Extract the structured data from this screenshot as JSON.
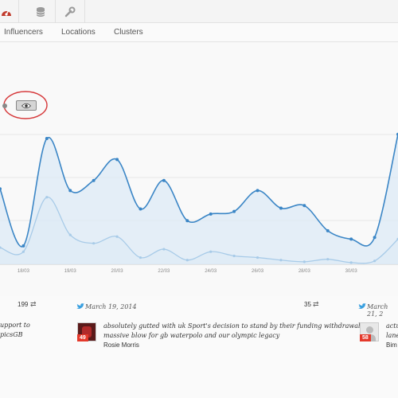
{
  "toolbar": {
    "icons": [
      "dashboard-icon",
      "database-icon",
      "wrench-icon"
    ]
  },
  "tabs": [
    "Influencers",
    "Locations",
    "Clusters"
  ],
  "chart_data": {
    "type": "area",
    "x_tick_labels": [
      "",
      "18/03",
      "",
      "19/03",
      "",
      "20/03",
      "",
      "22/03",
      "",
      "24/03",
      "",
      "26/03",
      "",
      "28/03",
      "",
      "30/03",
      ""
    ],
    "series": [
      {
        "values": [
          90,
          22,
          150,
          88,
          100,
          125,
          66,
          100,
          52,
          60,
          63,
          88,
          67,
          70,
          40,
          30,
          32,
          155
        ]
      },
      {
        "values": [
          20,
          15,
          80,
          35,
          25,
          33,
          8,
          18,
          5,
          15,
          10,
          8,
          5,
          3,
          6,
          2,
          4,
          30
        ]
      }
    ],
    "colors": {
      "primary": "#3b86c6",
      "secondary": "#a8cbe8",
      "fill": "#dce9f5"
    },
    "grid": true
  },
  "tweets": [
    {
      "date": "",
      "count": "199",
      "text_lines": [
        "upport to",
        "picsGB"
      ],
      "name": ""
    },
    {
      "date": "March 19, 2014",
      "count": "35",
      "text_lines": [
        "absolutely gutted with uk Sport's decision to stand by their funding withdrawal",
        "massive blow for gb waterpolo and our olympic legacy"
      ],
      "name": "Rosie Morris",
      "badge": "49"
    },
    {
      "date": "March 21, 2",
      "count": "",
      "text_lines": [
        "actu",
        "lane"
      ],
      "name": "Bim",
      "badge": "58"
    }
  ]
}
